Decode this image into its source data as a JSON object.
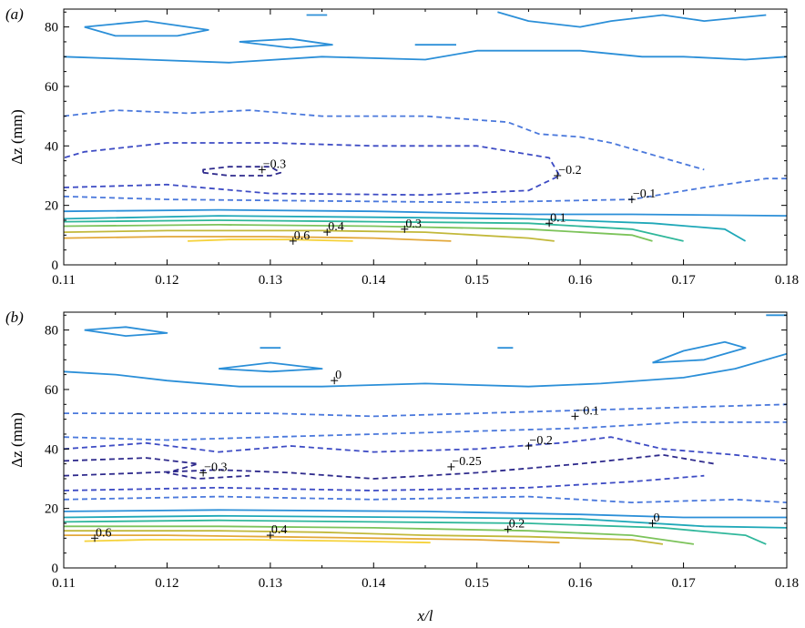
{
  "chart_data": [
    {
      "type": "contour",
      "panel_label": "(a)",
      "xlabel": "",
      "ylabel": "Δz (mm)",
      "xlim": [
        0.11,
        0.18
      ],
      "ylim": [
        0,
        86
      ],
      "xticks": [
        "0.11",
        "0.12",
        "0.13",
        "0.14",
        "0.15",
        "0.16",
        "0.17",
        "0.18"
      ],
      "yticks": [
        "0",
        "20",
        "40",
        "60",
        "80"
      ],
      "contour_labels": [
        {
          "text": "−0.3",
          "x": 0.1292,
          "y": 32
        },
        {
          "text": "−0.2",
          "x": 0.1578,
          "y": 30
        },
        {
          "text": "−0.1",
          "x": 0.165,
          "y": 22
        },
        {
          "text": "0.1",
          "x": 0.157,
          "y": 14
        },
        {
          "text": "0.3",
          "x": 0.143,
          "y": 12
        },
        {
          "text": "0.4",
          "x": 0.1355,
          "y": 11
        },
        {
          "text": "0.6",
          "x": 0.1322,
          "y": 8
        }
      ]
    },
    {
      "type": "contour",
      "panel_label": "(b)",
      "xlabel": "x/l",
      "ylabel": "Δz (mm)",
      "xlim": [
        0.11,
        0.18
      ],
      "ylim": [
        0,
        86
      ],
      "xticks": [
        "0.11",
        "0.12",
        "0.13",
        "0.14",
        "0.15",
        "0.16",
        "0.17",
        "0.18"
      ],
      "yticks": [
        "0",
        "20",
        "40",
        "60",
        "80"
      ],
      "contour_labels": [
        {
          "text": "0",
          "x": 0.1362,
          "y": 63
        },
        {
          "text": "−0.1",
          "x": 0.1595,
          "y": 51
        },
        {
          "text": "−0.2",
          "x": 0.155,
          "y": 41
        },
        {
          "text": "−0.25",
          "x": 0.1475,
          "y": 34
        },
        {
          "text": "−0.3",
          "x": 0.1235,
          "y": 32
        },
        {
          "text": "0",
          "x": 0.167,
          "y": 15
        },
        {
          "text": "0.2",
          "x": 0.153,
          "y": 13
        },
        {
          "text": "0.4",
          "x": 0.13,
          "y": 11
        },
        {
          "text": "0.6",
          "x": 0.113,
          "y": 10
        }
      ]
    }
  ],
  "colors": {
    "level_m03": "#2e2a8c",
    "level_m02": "#3d4bc4",
    "level_m01": "#4a78dc",
    "level_0": "#2b8fd8",
    "level_01": "#1fa8b8",
    "level_02": "#30b79b",
    "level_03": "#7cc35a",
    "level_04": "#c2b83a",
    "level_05": "#e3a83a",
    "level_06": "#f5d23a"
  }
}
